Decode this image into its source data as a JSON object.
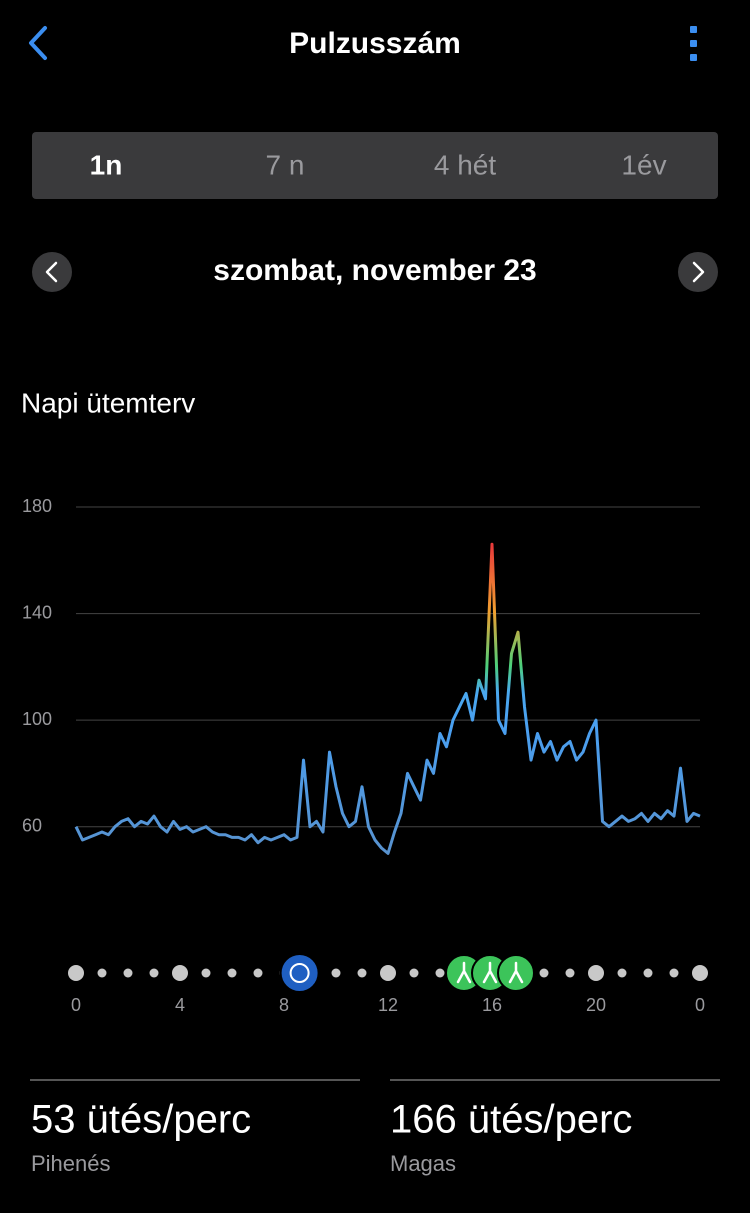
{
  "header": {
    "title": "Pulzusszám"
  },
  "tabs": [
    "1n",
    "7 n",
    "4 hét",
    "1év"
  ],
  "date": "szombat, november 23",
  "section_title": "Napi ütemterv",
  "chart_data": {
    "type": "line",
    "color": "#4a9ff0",
    "x": [
      0,
      0.25,
      0.5,
      0.75,
      1,
      1.25,
      1.5,
      1.75,
      2,
      2.25,
      2.5,
      2.75,
      3,
      3.25,
      3.5,
      3.75,
      4,
      4.25,
      4.5,
      4.75,
      5,
      5.25,
      5.5,
      5.75,
      6,
      6.25,
      6.5,
      6.75,
      7,
      7.25,
      7.5,
      7.75,
      8,
      8.25,
      8.5,
      8.75,
      9,
      9.25,
      9.5,
      9.75,
      10,
      10.25,
      10.5,
      10.75,
      11,
      11.25,
      11.5,
      11.75,
      12,
      12.25,
      12.5,
      12.75,
      13,
      13.25,
      13.5,
      13.75,
      14,
      14.25,
      14.5,
      14.75,
      15,
      15.25,
      15.5,
      15.75,
      16,
      16.25,
      16.5,
      16.75,
      17,
      17.25,
      17.5,
      17.75,
      18,
      18.25,
      18.5,
      18.75,
      19,
      19.25,
      19.5,
      19.75,
      20,
      20.25,
      20.5,
      20.75,
      21,
      21.25,
      21.5,
      21.75,
      22,
      22.25,
      22.5,
      22.75,
      23,
      23.25,
      23.5,
      23.75,
      24
    ],
    "values": [
      60,
      55,
      56,
      57,
      58,
      57,
      60,
      62,
      63,
      60,
      62,
      61,
      64,
      60,
      58,
      62,
      59,
      60,
      58,
      59,
      60,
      58,
      57,
      57,
      56,
      56,
      55,
      57,
      54,
      56,
      55,
      56,
      57,
      55,
      56,
      85,
      60,
      62,
      58,
      88,
      75,
      65,
      60,
      62,
      75,
      60,
      55,
      52,
      50,
      58,
      65,
      80,
      75,
      70,
      85,
      80,
      95,
      90,
      100,
      105,
      110,
      100,
      115,
      108,
      166,
      100,
      95,
      125,
      133,
      105,
      85,
      95,
      88,
      92,
      85,
      90,
      92,
      85,
      88,
      95,
      100,
      62,
      60,
      62,
      64,
      62,
      63,
      65,
      62,
      65,
      63,
      66,
      64,
      82,
      62,
      65,
      64
    ],
    "xlim": [
      0,
      24
    ],
    "xticks": [
      0,
      4,
      8,
      12,
      16,
      20,
      {
        "value": 24,
        "label": "0"
      }
    ],
    "ylim": [
      40,
      180
    ],
    "yticks": [
      60,
      100,
      140,
      180
    ],
    "grid": true
  },
  "stats": [
    {
      "value": "53 ütés/perc",
      "label": "Pihenés"
    },
    {
      "value": "166 ütés/perc",
      "label": "Magas"
    }
  ]
}
